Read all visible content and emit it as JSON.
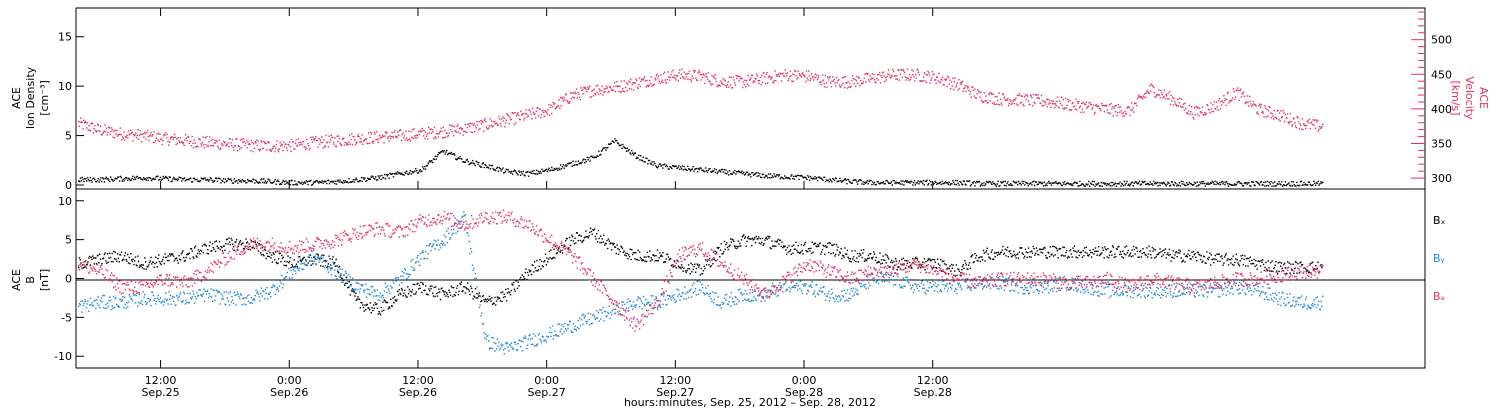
{
  "colors": {
    "black": "#000000",
    "pink": "#e8305f",
    "blue": "#1e88d8",
    "axis": "#000000"
  },
  "chart_data": [
    {
      "type": "scatter",
      "panel": "top",
      "left_axis": {
        "label_lines": [
          "ACE",
          "Ion Density",
          "[cm⁻³]"
        ],
        "ylim": [
          0,
          17.5
        ],
        "ticks": [
          0,
          5,
          10,
          15
        ]
      },
      "right_axis": {
        "label_lines": [
          "ACE",
          "Velocity",
          "[km/s]"
        ],
        "ylim": [
          290,
          540
        ],
        "ticks": [
          300,
          350,
          400,
          450,
          500
        ]
      },
      "series": [
        {
          "axis": "left",
          "color": "black",
          "t": [
            0,
            2,
            4,
            6,
            8,
            10,
            12,
            14,
            16,
            18,
            20,
            22,
            24,
            26,
            28,
            30,
            32,
            34,
            36,
            38,
            40,
            42,
            44,
            46,
            48,
            50,
            52,
            54,
            56,
            58,
            60,
            62,
            64,
            66,
            68,
            70,
            72,
            74,
            76,
            78,
            80,
            82,
            84,
            86,
            88,
            90,
            92,
            94,
            96,
            98,
            100,
            102,
            104,
            106,
            108,
            110,
            112,
            114,
            116
          ],
          "values": [
            0.6,
            0.6,
            0.7,
            0.8,
            0.7,
            0.6,
            0.6,
            0.5,
            0.5,
            0.4,
            0.3,
            0.3,
            0.4,
            0.6,
            0.8,
            1.2,
            1.6,
            3.5,
            2.5,
            2.0,
            1.4,
            1.2,
            1.6,
            2.2,
            2.8,
            4.5,
            3.0,
            2.0,
            1.8,
            1.6,
            1.4,
            1.2,
            1.0,
            0.9,
            0.8,
            0.6,
            0.4,
            0.3,
            0.3,
            0.3,
            0.3,
            0.3,
            0.2,
            0.2,
            0.2,
            0.2,
            0.2,
            0.2,
            0.2,
            0.2,
            0.2,
            0.2,
            0.2,
            0.2,
            0.2,
            0.2,
            0.2,
            0.2,
            0.2
          ]
        },
        {
          "axis": "right",
          "color": "pink",
          "t": [
            0,
            2,
            4,
            6,
            8,
            10,
            12,
            14,
            16,
            18,
            20,
            22,
            24,
            26,
            28,
            30,
            32,
            34,
            36,
            38,
            40,
            42,
            44,
            46,
            48,
            50,
            52,
            54,
            56,
            58,
            60,
            62,
            64,
            66,
            68,
            70,
            72,
            74,
            76,
            78,
            80,
            82,
            84,
            86,
            88,
            90,
            92,
            94,
            96,
            98,
            100,
            102,
            104,
            106,
            108,
            110,
            112,
            114,
            116
          ],
          "values": [
            380,
            370,
            365,
            362,
            358,
            355,
            352,
            350,
            348,
            347,
            348,
            352,
            355,
            358,
            360,
            362,
            365,
            368,
            372,
            378,
            385,
            392,
            400,
            420,
            428,
            432,
            438,
            445,
            450,
            448,
            440,
            440,
            445,
            450,
            448,
            440,
            440,
            445,
            450,
            450,
            446,
            436,
            420,
            415,
            414,
            412,
            408,
            404,
            400,
            398,
            430,
            415,
            395,
            405,
            425,
            400,
            392,
            380,
            375
          ]
        }
      ]
    },
    {
      "type": "scatter",
      "panel": "bottom",
      "left_axis": {
        "label_lines": [
          "ACE",
          "B",
          "[nT]"
        ],
        "ylim": [
          -11,
          11
        ],
        "ticks": [
          -10,
          -5,
          0,
          5,
          10
        ]
      },
      "legend": [
        "Bₓ",
        "Bᵧ",
        "Bₔ"
      ],
      "series": [
        {
          "name": "Bₓ",
          "color": "black",
          "t": [
            0,
            2,
            4,
            6,
            8,
            10,
            12,
            14,
            16,
            18,
            20,
            22,
            24,
            26,
            28,
            30,
            32,
            34,
            36,
            38,
            40,
            42,
            44,
            46,
            48,
            50,
            52,
            54,
            56,
            58,
            60,
            62,
            64,
            66,
            68,
            70,
            72,
            74,
            76,
            78,
            80,
            82,
            84,
            86,
            88,
            90,
            92,
            94,
            96,
            98,
            100,
            102,
            104,
            106,
            108,
            110,
            112,
            114,
            116
          ],
          "values": [
            2,
            2.5,
            3,
            2,
            2.5,
            3,
            4,
            4.5,
            4.5,
            3,
            2,
            2.5,
            2,
            -3,
            -4,
            -2,
            -1,
            -2,
            -1,
            -3,
            -2,
            1,
            3,
            5,
            6,
            4,
            3,
            3,
            2,
            1,
            4,
            5,
            5,
            4,
            4,
            4,
            3,
            3,
            2,
            2,
            2,
            1,
            3,
            3.5,
            3.5,
            3.5,
            3.5,
            3.5,
            3.5,
            3.5,
            3.5,
            3,
            3,
            2.5,
            2.5,
            2,
            1.5,
            1.5,
            1.5
          ]
        },
        {
          "name": "Bᵧ",
          "color": "blue",
          "t": [
            0,
            2,
            4,
            6,
            8,
            10,
            12,
            14,
            16,
            18,
            20,
            22,
            24,
            26,
            28,
            30,
            32,
            34,
            36,
            38,
            40,
            42,
            44,
            46,
            48,
            50,
            52,
            54,
            56,
            58,
            60,
            62,
            64,
            66,
            68,
            70,
            72,
            74,
            76,
            78,
            80,
            82,
            84,
            86,
            88,
            90,
            92,
            94,
            96,
            98,
            100,
            102,
            104,
            106,
            108,
            110,
            112,
            114,
            116
          ],
          "values": [
            -3.5,
            -3,
            -3,
            -2.5,
            -2.5,
            -2.5,
            -2,
            -2.5,
            -2.5,
            -1.5,
            1,
            3,
            1,
            -1,
            -2,
            0,
            3,
            5,
            8,
            -8,
            -9,
            -8,
            -7,
            -6,
            -5,
            -4,
            -3,
            -3,
            -2,
            -1,
            -3,
            -2,
            -2,
            -1,
            -1,
            -2,
            -2,
            0,
            0,
            -1,
            -1,
            -1,
            -0.5,
            -0.5,
            -1,
            -1,
            -0.5,
            -1,
            -1.5,
            -1.5,
            -1.5,
            -1.5,
            -1.5,
            -1.5,
            -1,
            -1.5,
            -2.5,
            -3,
            -3
          ]
        },
        {
          "name": "Bₔ",
          "color": "pink",
          "t": [
            0,
            2,
            4,
            6,
            8,
            10,
            12,
            14,
            16,
            18,
            20,
            22,
            24,
            26,
            28,
            30,
            32,
            34,
            36,
            38,
            40,
            42,
            44,
            46,
            48,
            50,
            52,
            54,
            56,
            58,
            60,
            62,
            64,
            66,
            68,
            70,
            72,
            74,
            76,
            78,
            80,
            82,
            84,
            86,
            88,
            90,
            92,
            94,
            96,
            98,
            100,
            102,
            104,
            106,
            108,
            110,
            112,
            114,
            116
          ],
          "values": [
            2,
            1,
            -1,
            -1,
            0,
            -0.5,
            1,
            3,
            4.5,
            4.5,
            4,
            4.5,
            5,
            6,
            6.5,
            6,
            7.5,
            8,
            7,
            8,
            8,
            7,
            5,
            3,
            0,
            -3,
            -6,
            -3,
            3,
            4,
            2,
            0,
            -2,
            0,
            2,
            1,
            0,
            1,
            1,
            2,
            1,
            0,
            -0.5,
            0,
            0,
            0,
            -0.5,
            -0.5,
            0,
            -1,
            0,
            -0.5,
            -1,
            -0.5,
            0,
            0,
            0.5,
            1,
            1
          ]
        }
      ]
    }
  ],
  "x_axis": {
    "ticks": [
      {
        "t": 7.7,
        "time": "12:00",
        "date": "Sep.25"
      },
      {
        "t": 19.7,
        "time": "0:00",
        "date": "Sep.26"
      },
      {
        "t": 31.7,
        "time": "12:00",
        "date": "Sep.26"
      },
      {
        "t": 43.7,
        "time": "0:00",
        "date": "Sep.27"
      },
      {
        "t": 55.7,
        "time": "12:00",
        "date": "Sep.27"
      },
      {
        "t": 67.7,
        "time": "0:00",
        "date": "Sep.28"
      },
      {
        "t": 79.7,
        "time": "12:00",
        "date": "Sep.28"
      }
    ],
    "label": "hours:minutes, Sep. 25, 2012 – Sep. 28, 2012"
  }
}
